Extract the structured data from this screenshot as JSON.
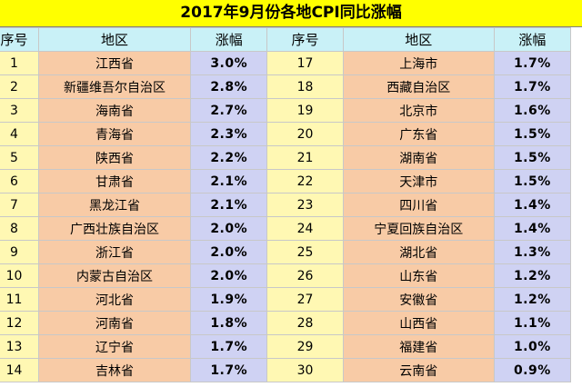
{
  "title": "2017年9月份各地CPI同比涨幅",
  "headers": {
    "num": "序号",
    "region": "地区",
    "change": "涨幅"
  },
  "rows": [
    {
      "left": {
        "num": "1",
        "region": "江西省",
        "change": "3.0%"
      },
      "right": {
        "num": "17",
        "region": "上海市",
        "change": "1.7%"
      }
    },
    {
      "left": {
        "num": "2",
        "region": "新疆维吾尔自治区",
        "change": "2.8%"
      },
      "right": {
        "num": "18",
        "region": "西藏自治区",
        "change": "1.7%"
      }
    },
    {
      "left": {
        "num": "3",
        "region": "海南省",
        "change": "2.7%"
      },
      "right": {
        "num": "19",
        "region": "北京市",
        "change": "1.6%"
      }
    },
    {
      "left": {
        "num": "4",
        "region": "青海省",
        "change": "2.3%"
      },
      "right": {
        "num": "20",
        "region": "广东省",
        "change": "1.5%"
      }
    },
    {
      "left": {
        "num": "5",
        "region": "陕西省",
        "change": "2.2%"
      },
      "right": {
        "num": "21",
        "region": "湖南省",
        "change": "1.5%"
      }
    },
    {
      "left": {
        "num": "6",
        "region": "甘肃省",
        "change": "2.1%"
      },
      "right": {
        "num": "22",
        "region": "天津市",
        "change": "1.5%"
      }
    },
    {
      "left": {
        "num": "7",
        "region": "黑龙江省",
        "change": "2.1%"
      },
      "right": {
        "num": "23",
        "region": "四川省",
        "change": "1.4%"
      }
    },
    {
      "left": {
        "num": "8",
        "region": "广西壮族自治区",
        "change": "2.0%"
      },
      "right": {
        "num": "24",
        "region": "宁夏回族自治区",
        "change": "1.4%"
      }
    },
    {
      "left": {
        "num": "9",
        "region": "浙江省",
        "change": "2.0%"
      },
      "right": {
        "num": "25",
        "region": "湖北省",
        "change": "1.3%"
      }
    },
    {
      "left": {
        "num": "10",
        "region": "内蒙古自治区",
        "change": "2.0%"
      },
      "right": {
        "num": "26",
        "region": "山东省",
        "change": "1.2%"
      }
    },
    {
      "left": {
        "num": "11",
        "region": "河北省",
        "change": "1.9%"
      },
      "right": {
        "num": "27",
        "region": "安徽省",
        "change": "1.2%"
      }
    },
    {
      "left": {
        "num": "12",
        "region": "河南省",
        "change": "1.8%"
      },
      "right": {
        "num": "28",
        "region": "山西省",
        "change": "1.1%"
      }
    },
    {
      "left": {
        "num": "13",
        "region": "辽宁省",
        "change": "1.7%"
      },
      "right": {
        "num": "29",
        "region": "福建省",
        "change": "1.0%"
      }
    },
    {
      "left": {
        "num": "14",
        "region": "吉林省",
        "change": "1.7%"
      },
      "right": {
        "num": "30",
        "region": "云南省",
        "change": "0.9%"
      }
    }
  ]
}
